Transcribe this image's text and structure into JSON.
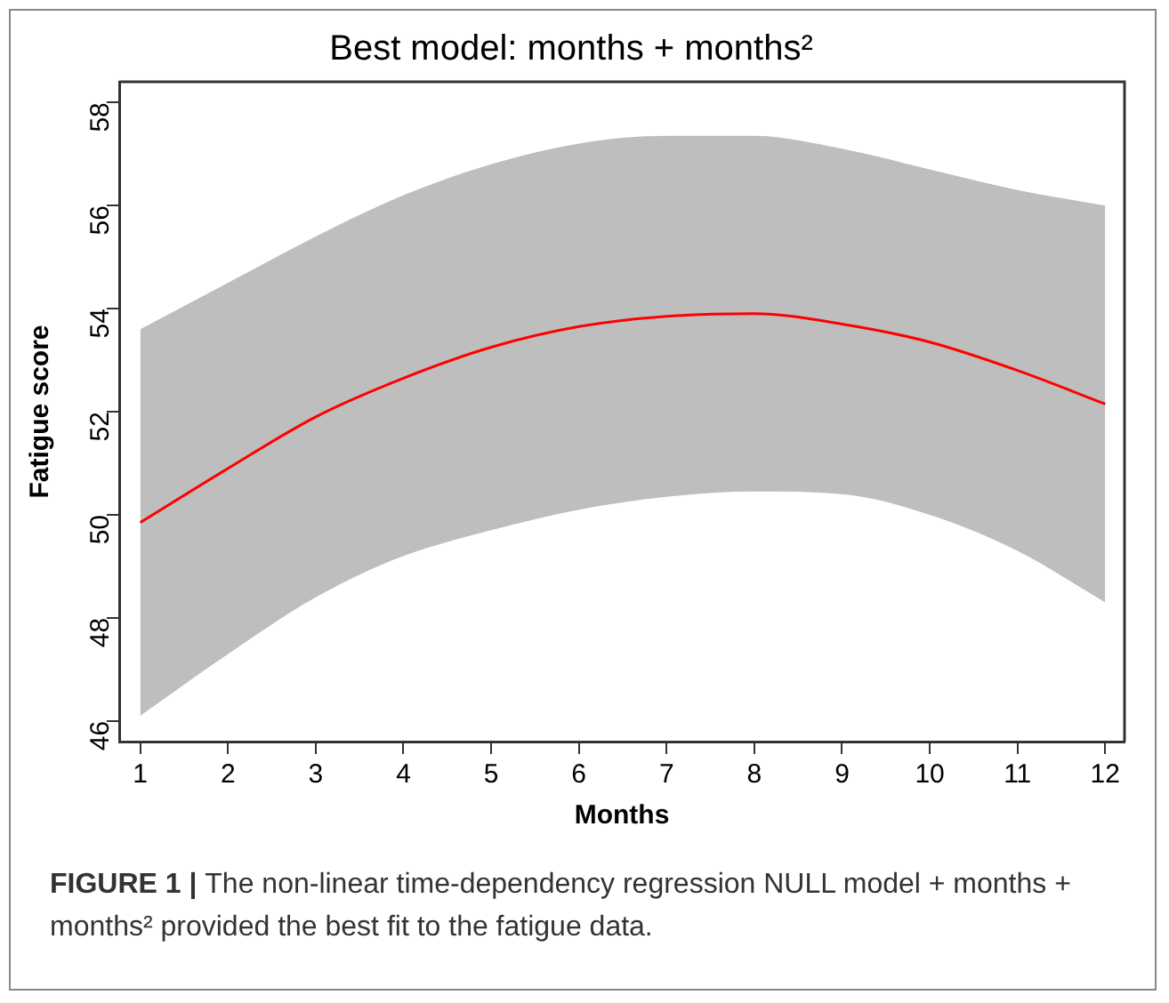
{
  "chart_data": {
    "type": "line",
    "title": "Best model: months + months²",
    "xlabel": "Months",
    "ylabel": "Fatigue score",
    "x": [
      1,
      2,
      3,
      4,
      5,
      6,
      7,
      8,
      9,
      10,
      11,
      12
    ],
    "series": [
      {
        "color": "#ff0000",
        "values": [
          49.85,
          50.9,
          51.9,
          52.65,
          53.25,
          53.65,
          53.85,
          53.9,
          53.7,
          53.35,
          52.8,
          52.15
        ],
        "lower": [
          46.1,
          47.3,
          48.4,
          49.2,
          49.7,
          50.1,
          50.35,
          50.45,
          50.4,
          50.0,
          49.3,
          48.3
        ],
        "upper": [
          53.6,
          54.5,
          55.4,
          56.2,
          56.8,
          57.2,
          57.35,
          57.35,
          57.1,
          56.7,
          56.3,
          56.0
        ]
      }
    ],
    "xlim": [
      0.76,
      12.22
    ],
    "xticks": [
      1,
      2,
      3,
      4,
      5,
      6,
      7,
      8,
      9,
      10,
      11,
      12
    ],
    "ylim": [
      45.6,
      58.4
    ],
    "yticks": [
      46,
      48,
      50,
      52,
      54,
      56,
      58
    ],
    "grid": false,
    "legend": false,
    "marker": "none",
    "line_style": "solid",
    "annotations": [
      "FIGURE 1 |",
      "The non-linear time-dependency regression NULL model + months + months² provided the best fit to the fatigue data."
    ]
  }
}
